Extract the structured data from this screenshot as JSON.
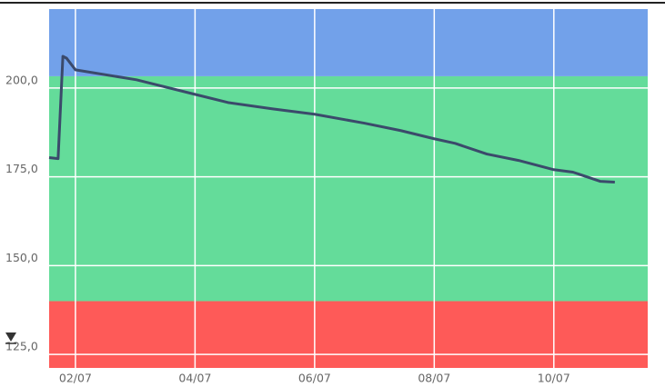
{
  "chart_data": {
    "type": "line",
    "x": [
      1.56,
      1.71,
      1.79,
      1.85,
      2.0,
      3.02,
      4.0,
      4.55,
      5.3,
      6.0,
      6.83,
      7.44,
      8.0,
      8.35,
      8.88,
      9.41,
      10.0,
      10.32,
      10.78,
      11.02
    ],
    "series": [
      {
        "color": "#3b4a6b",
        "values": [
          180.4,
          180.1,
          208.9,
          208.4,
          205.1,
          202.3,
          198.2,
          195.9,
          194.1,
          192.6,
          190.1,
          188.0,
          185.7,
          184.4,
          181.4,
          179.6,
          177.0,
          176.3,
          173.7,
          173.5
        ]
      }
    ],
    "xlim": [
      1.56,
      11.57
    ],
    "xticks": [
      {
        "value": 2,
        "label": "02/07"
      },
      {
        "value": 4,
        "label": "04/07"
      },
      {
        "value": 6,
        "label": "06/07"
      },
      {
        "value": 8,
        "label": "08/07"
      },
      {
        "value": 10,
        "label": "10/07"
      }
    ],
    "ylim": [
      121.2,
      222.2
    ],
    "yticks": [
      {
        "value": 125,
        "label": "125,0"
      },
      {
        "value": 150,
        "label": "150,0"
      },
      {
        "value": 175,
        "label": "175,0"
      },
      {
        "value": 200,
        "label": "200,0"
      }
    ],
    "bands": [
      {
        "from": 121.2,
        "to": 140,
        "color": "#fe5a58"
      },
      {
        "from": 140,
        "to": 203.3,
        "color": "#64dc9a"
      },
      {
        "from": 203.3,
        "to": 222.2,
        "color": "#72a1ea"
      }
    ],
    "grid": true
  }
}
